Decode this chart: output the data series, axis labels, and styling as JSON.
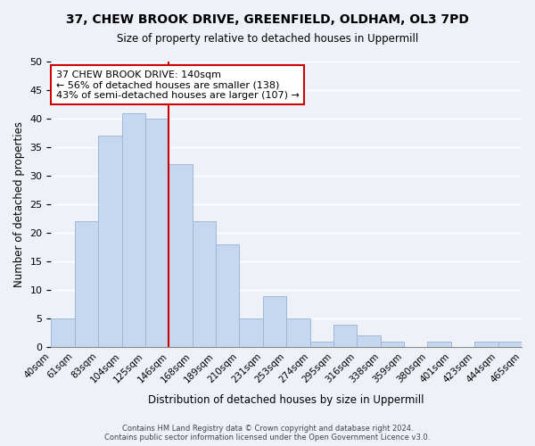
{
  "title1": "37, CHEW BROOK DRIVE, GREENFIELD, OLDHAM, OL3 7PD",
  "title2": "Size of property relative to detached houses in Uppermill",
  "xlabel": "Distribution of detached houses by size in Uppermill",
  "ylabel": "Number of detached properties",
  "bin_labels": [
    "40sqm",
    "61sqm",
    "83sqm",
    "104sqm",
    "125sqm",
    "146sqm",
    "168sqm",
    "189sqm",
    "210sqm",
    "231sqm",
    "253sqm",
    "274sqm",
    "295sqm",
    "316sqm",
    "338sqm",
    "359sqm",
    "380sqm",
    "401sqm",
    "423sqm",
    "444sqm",
    "465sqm"
  ],
  "bar_values": [
    5,
    22,
    37,
    41,
    40,
    32,
    22,
    18,
    5,
    9,
    5,
    1,
    4,
    2,
    1,
    0,
    1,
    0,
    1,
    1
  ],
  "bar_color": "#c5d8f0",
  "bar_edge_color": "#a0b8d8",
  "vline_x": 5,
  "vline_color": "#cc0000",
  "annotation_title": "37 CHEW BROOK DRIVE: 140sqm",
  "annotation_line1": "← 56% of detached houses are smaller (138)",
  "annotation_line2": "43% of semi-detached houses are larger (107) →",
  "annotation_box_edge": "#cc0000",
  "ylim": [
    0,
    50
  ],
  "yticks": [
    0,
    5,
    10,
    15,
    20,
    25,
    30,
    35,
    40,
    45,
    50
  ],
  "footer1": "Contains HM Land Registry data © Crown copyright and database right 2024.",
  "footer2": "Contains public sector information licensed under the Open Government Licence v3.0.",
  "bg_color": "#eef2f8",
  "plot_bg_color": "#eef2f8"
}
